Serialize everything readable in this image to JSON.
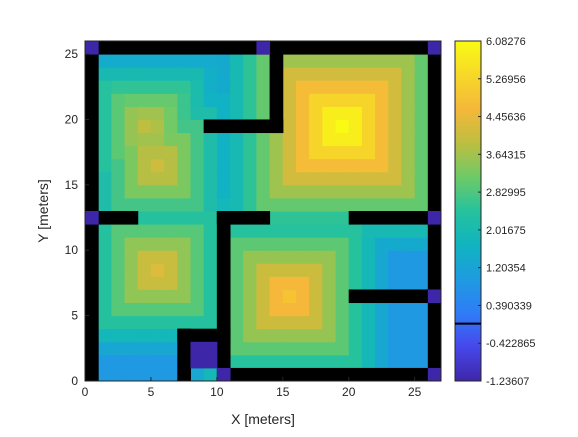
{
  "chart_data": {
    "type": "heatmap",
    "title": "",
    "xlabel": "X [meters]",
    "ylabel": "Y [meters]",
    "xlim": [
      0,
      27
    ],
    "ylim": [
      0,
      26
    ],
    "xticks": [
      0,
      5,
      10,
      15,
      20,
      25
    ],
    "yticks": [
      0,
      5,
      10,
      15,
      20,
      25
    ],
    "cell_size": 1,
    "colormap": "parula",
    "clim": [
      -1.23607,
      6.08276
    ],
    "colorbar": {
      "location": "right",
      "tick_values": [
        6.08276,
        5.26956,
        4.45636,
        3.64315,
        2.82995,
        2.01675,
        1.20354,
        0.390339,
        -0.422865,
        -1.23607
      ],
      "tick_labels": [
        "6.08276",
        "5.26956",
        "4.45636",
        "3.64315",
        "2.82995",
        "2.01675",
        "1.20354",
        "0.390339",
        "-0.422865",
        "-1.23607"
      ],
      "marker_line_value": 0
    },
    "obstacle_color": "#000000",
    "obstacles": [
      {
        "x": [
          0,
          27
        ],
        "y": [
          25,
          26
        ]
      },
      {
        "x": [
          0,
          1
        ],
        "y": [
          0,
          26
        ]
      },
      {
        "x": [
          26,
          27
        ],
        "y": [
          0,
          26
        ]
      },
      {
        "x": [
          10,
          27
        ],
        "y": [
          0,
          1
        ]
      },
      {
        "x": [
          7,
          8
        ],
        "y": [
          0,
          4
        ]
      },
      {
        "x": [
          7,
          11
        ],
        "y": [
          3,
          4
        ]
      },
      {
        "x": [
          10,
          11
        ],
        "y": [
          1,
          4
        ]
      },
      {
        "x": [
          14,
          15
        ],
        "y": [
          19,
          25
        ]
      },
      {
        "x": [
          9,
          15
        ],
        "y": [
          19,
          20
        ]
      },
      {
        "x": [
          1,
          4
        ],
        "y": [
          12,
          13
        ]
      },
      {
        "x": [
          10,
          14
        ],
        "y": [
          12,
          13
        ]
      },
      {
        "x": [
          10,
          11
        ],
        "y": [
          4,
          13
        ]
      },
      {
        "x": [
          20,
          26
        ],
        "y": [
          12,
          13
        ]
      },
      {
        "x": [
          20,
          26
        ],
        "y": [
          6,
          7
        ]
      }
    ],
    "low_value_color": "#3e26a8",
    "low_value_cells": [
      {
        "x": [
          8,
          10
        ],
        "y": [
          1,
          3
        ]
      },
      {
        "x": [
          0,
          1
        ],
        "y": [
          25,
          26
        ]
      },
      {
        "x": [
          13,
          14
        ],
        "y": [
          25,
          26
        ]
      },
      {
        "x": [
          26,
          27
        ],
        "y": [
          25,
          26
        ]
      },
      {
        "x": [
          0,
          1
        ],
        "y": [
          12,
          13
        ]
      },
      {
        "x": [
          26,
          27
        ],
        "y": [
          12,
          13
        ]
      },
      {
        "x": [
          26,
          27
        ],
        "y": [
          6,
          7
        ]
      },
      {
        "x": [
          10,
          11
        ],
        "y": [
          0,
          1
        ]
      },
      {
        "x": [
          26,
          27
        ],
        "y": [
          0,
          1
        ]
      }
    ],
    "field_peaks": [
      {
        "x": 19.5,
        "y": 19.5,
        "value": 6.08
      },
      {
        "x": 4.7,
        "y": 19.5,
        "value": 3.9
      },
      {
        "x": 5.5,
        "y": 16.5,
        "value": 4.1
      },
      {
        "x": 5.5,
        "y": 8.5,
        "value": 4.3
      },
      {
        "x": 15.5,
        "y": 6.5,
        "value": 4.9
      },
      {
        "x": 16.5,
        "y": 15.5,
        "value": 3.8
      }
    ]
  }
}
